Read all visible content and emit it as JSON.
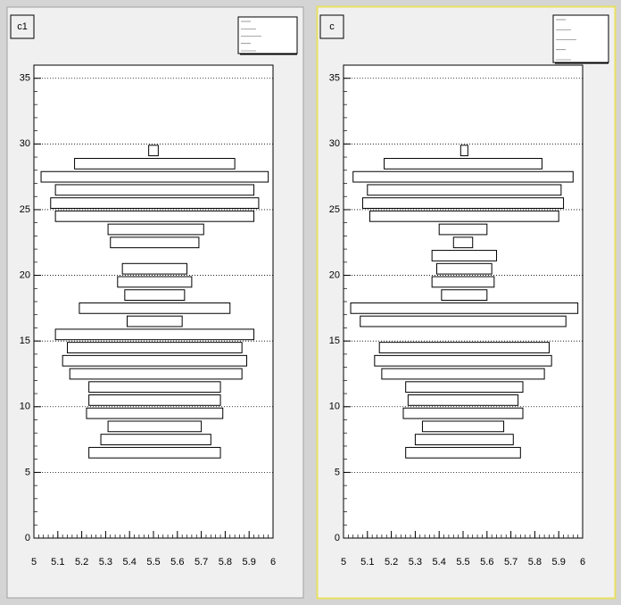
{
  "chart_data": [
    {
      "type": "boxes",
      "title": "c1",
      "y": [
        29.5,
        28.5,
        27.5,
        26.5,
        25.5,
        24.5,
        23.5,
        22.5,
        20.5,
        19.5,
        18.5,
        17.5,
        16.5,
        15.5,
        14.5,
        13.5,
        12.5,
        11.5,
        10.5,
        9.5,
        8.5,
        7.5,
        6.5
      ],
      "low": [
        5.48,
        5.17,
        5.03,
        5.09,
        5.07,
        5.09,
        5.31,
        5.32,
        5.37,
        5.35,
        5.38,
        5.19,
        5.39,
        5.09,
        5.14,
        5.12,
        5.15,
        5.23,
        5.23,
        5.22,
        5.31,
        5.28,
        5.23
      ],
      "high": [
        5.52,
        5.84,
        5.98,
        5.92,
        5.94,
        5.92,
        5.71,
        5.69,
        5.64,
        5.66,
        5.63,
        5.82,
        5.62,
        5.92,
        5.87,
        5.89,
        5.87,
        5.78,
        5.78,
        5.79,
        5.7,
        5.74,
        5.78
      ],
      "xlim": [
        5,
        6
      ],
      "ylim": [
        0,
        36
      ],
      "xticks": [
        5,
        5.1,
        5.2,
        5.3,
        5.4,
        5.5,
        5.6,
        5.7,
        5.8,
        5.9,
        6
      ],
      "yticks": [
        0,
        5,
        10,
        15,
        20,
        25,
        30,
        35
      ],
      "grid": true
    },
    {
      "type": "boxes",
      "title": "c",
      "y": [
        29.5,
        28.5,
        27.5,
        26.5,
        25.5,
        24.5,
        23.5,
        22.5,
        21.5,
        20.5,
        19.5,
        18.5,
        17.5,
        16.5,
        14.5,
        13.5,
        12.5,
        11.5,
        10.5,
        9.5,
        8.5,
        7.5,
        6.5
      ],
      "low": [
        5.49,
        5.17,
        5.04,
        5.1,
        5.08,
        5.11,
        5.4,
        5.46,
        5.37,
        5.39,
        5.37,
        5.41,
        5.03,
        5.07,
        5.15,
        5.13,
        5.16,
        5.26,
        5.27,
        5.25,
        5.33,
        5.3,
        5.26
      ],
      "high": [
        5.52,
        5.83,
        5.96,
        5.91,
        5.92,
        5.9,
        5.6,
        5.54,
        5.64,
        5.62,
        5.63,
        5.6,
        5.98,
        5.93,
        5.86,
        5.87,
        5.84,
        5.75,
        5.73,
        5.75,
        5.67,
        5.71,
        5.74
      ],
      "xlim": [
        5,
        6
      ],
      "ylim": [
        0,
        36
      ],
      "xticks": [
        5,
        5.1,
        5.2,
        5.3,
        5.4,
        5.5,
        5.6,
        5.7,
        5.8,
        5.9,
        6
      ],
      "yticks": [
        0,
        5,
        10,
        15,
        20,
        25,
        30,
        35
      ],
      "grid": true
    }
  ]
}
